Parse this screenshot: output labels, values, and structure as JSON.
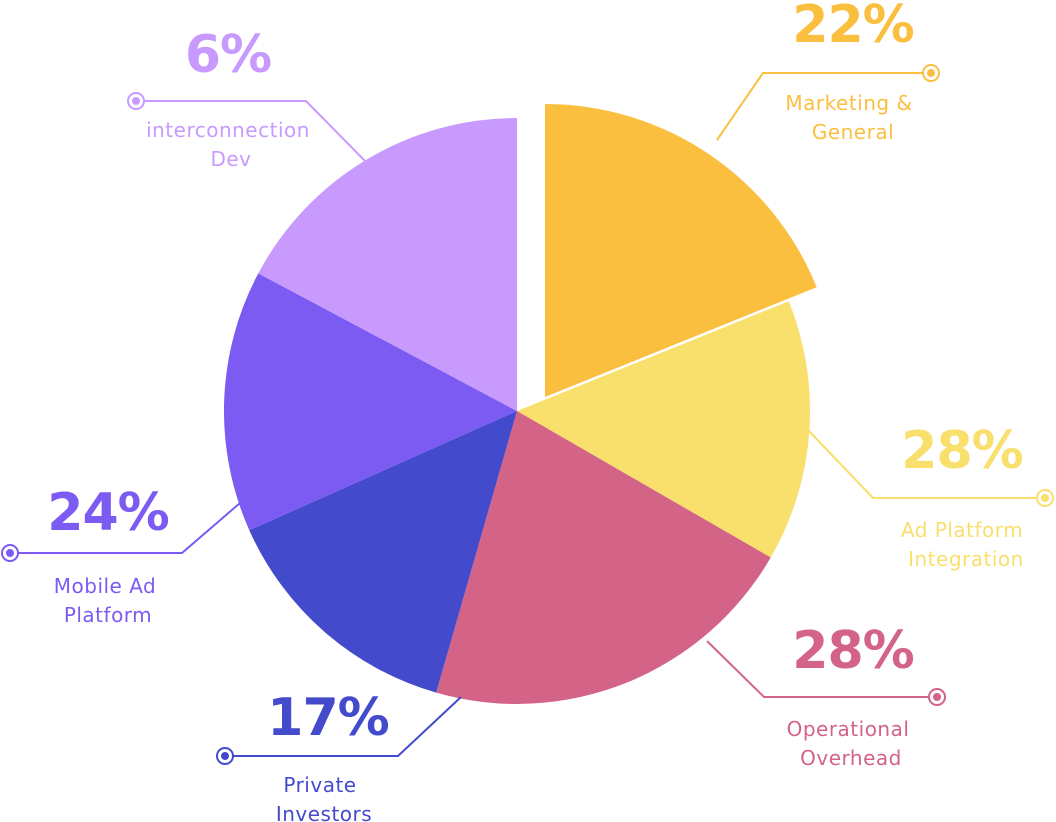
{
  "chart_data": {
    "type": "pie",
    "title": "",
    "slices": [
      {
        "pct_label": "22%",
        "label_line1": "Marketing &",
        "label_line2": "General",
        "color": "#FBBF40",
        "value": 22
      },
      {
        "pct_label": "28%",
        "label_line1": "Ad Platform",
        "label_line2": "Integration",
        "color": "#F9DF6B",
        "value": 28
      },
      {
        "pct_label": "28%",
        "label_line1": "Operational",
        "label_line2": "Overhead",
        "color": "#D36387",
        "value": 28
      },
      {
        "pct_label": "17%",
        "label_line1": "Private",
        "label_line2": "Investors",
        "color": "#434BCC",
        "value": 17
      },
      {
        "pct_label": "24%",
        "label_line1": "Mobile Ad",
        "label_line2": "Platform",
        "color": "#7B5BF2",
        "value": 24
      },
      {
        "pct_label": "6%",
        "label_line1": "interconnection",
        "label_line2": "Dev",
        "color": "#C99AFD",
        "value": 6
      }
    ],
    "exploded_slice": 0,
    "legend": "callouts"
  }
}
